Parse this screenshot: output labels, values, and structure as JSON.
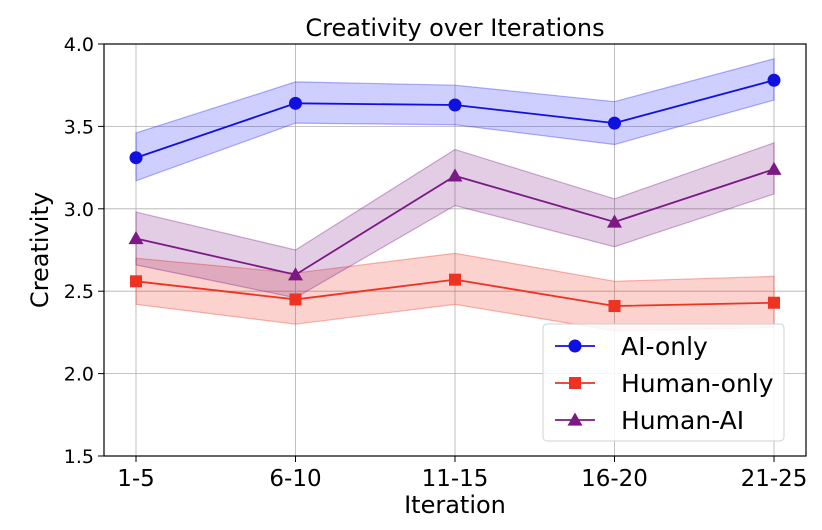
{
  "chart_data": {
    "type": "line",
    "title": "Creativity over Iterations",
    "xlabel": "Iteration",
    "ylabel": "Creativity",
    "categories": [
      "1-5",
      "6-10",
      "11-15",
      "16-20",
      "21-25"
    ],
    "ylim": [
      1.5,
      4.0
    ],
    "yticks": [
      "1.5",
      "2.0",
      "2.5",
      "3.0",
      "3.5",
      "4.0"
    ],
    "grid": true,
    "legend_position": "lower-right",
    "series": [
      {
        "name": "AI-only",
        "color": "#1010e0",
        "band_color": "#2020ff",
        "marker": "circle",
        "values": [
          3.31,
          3.64,
          3.63,
          3.52,
          3.78
        ],
        "lower": [
          3.17,
          3.52,
          3.51,
          3.39,
          3.66
        ],
        "upper": [
          3.46,
          3.77,
          3.75,
          3.65,
          3.91
        ]
      },
      {
        "name": "Human-only",
        "color": "#ee3322",
        "band_color": "#ee3322",
        "marker": "square",
        "values": [
          2.56,
          2.45,
          2.57,
          2.41,
          2.43
        ],
        "lower": [
          2.42,
          2.3,
          2.42,
          2.26,
          2.28
        ],
        "upper": [
          2.7,
          2.61,
          2.73,
          2.56,
          2.59
        ]
      },
      {
        "name": "Human-AI",
        "color": "#7b1a84",
        "band_color": "#7b1a84",
        "marker": "triangle",
        "values": [
          2.82,
          2.6,
          3.2,
          2.92,
          3.24
        ],
        "lower": [
          2.66,
          2.46,
          3.02,
          2.77,
          3.09
        ],
        "upper": [
          2.98,
          2.75,
          3.36,
          3.06,
          3.4
        ]
      }
    ]
  }
}
